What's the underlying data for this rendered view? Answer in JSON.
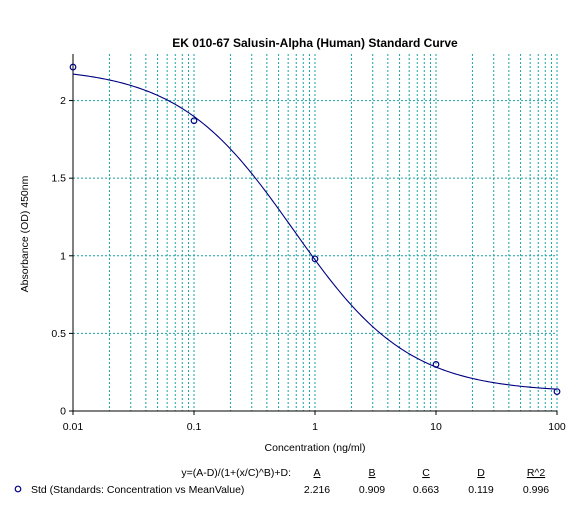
{
  "chart_data": {
    "type": "scatter",
    "title": "EK 010-67 Salusin-Alpha (Human) Standard Curve",
    "xlabel": "Concentration (ng/ml)",
    "ylabel": "Absorbance (OD) 450nm",
    "x_scale": "log",
    "xlim": [
      0.01,
      100
    ],
    "ylim": [
      0,
      2.3
    ],
    "x_major_ticks": [
      0.01,
      0.1,
      1,
      10,
      100
    ],
    "x_tick_labels": [
      "0.01",
      "0.1",
      "1",
      "10",
      "100"
    ],
    "y_ticks": [
      0,
      0.5,
      1,
      1.5,
      2
    ],
    "y_tick_labels": [
      "0",
      "0.5",
      "1",
      "1.5",
      "2"
    ],
    "grid": true,
    "colors": {
      "grid": "#1aa3a3",
      "series": "#000080",
      "axis": "#000000"
    },
    "series": [
      {
        "name": "Std (Standards: Concentration vs MeanValue)",
        "x": [
          0.01,
          0.1,
          1,
          10,
          100
        ],
        "y": [
          2.216,
          1.87,
          0.98,
          0.3,
          0.125
        ],
        "marker": "circle"
      }
    ],
    "fit": {
      "equation": "y=(A-D)/(1+(x/C)^B)+D:",
      "parameter_labels": [
        "A",
        "B",
        "C",
        "D",
        "R^2"
      ],
      "parameter_values": [
        "2.216",
        "0.909",
        "0.663",
        "0.119",
        "0.996"
      ],
      "A": 2.216,
      "B": 0.909,
      "C": 0.663,
      "D": 0.119,
      "R2": 0.996
    },
    "legend": {
      "placement": "bottom"
    }
  }
}
